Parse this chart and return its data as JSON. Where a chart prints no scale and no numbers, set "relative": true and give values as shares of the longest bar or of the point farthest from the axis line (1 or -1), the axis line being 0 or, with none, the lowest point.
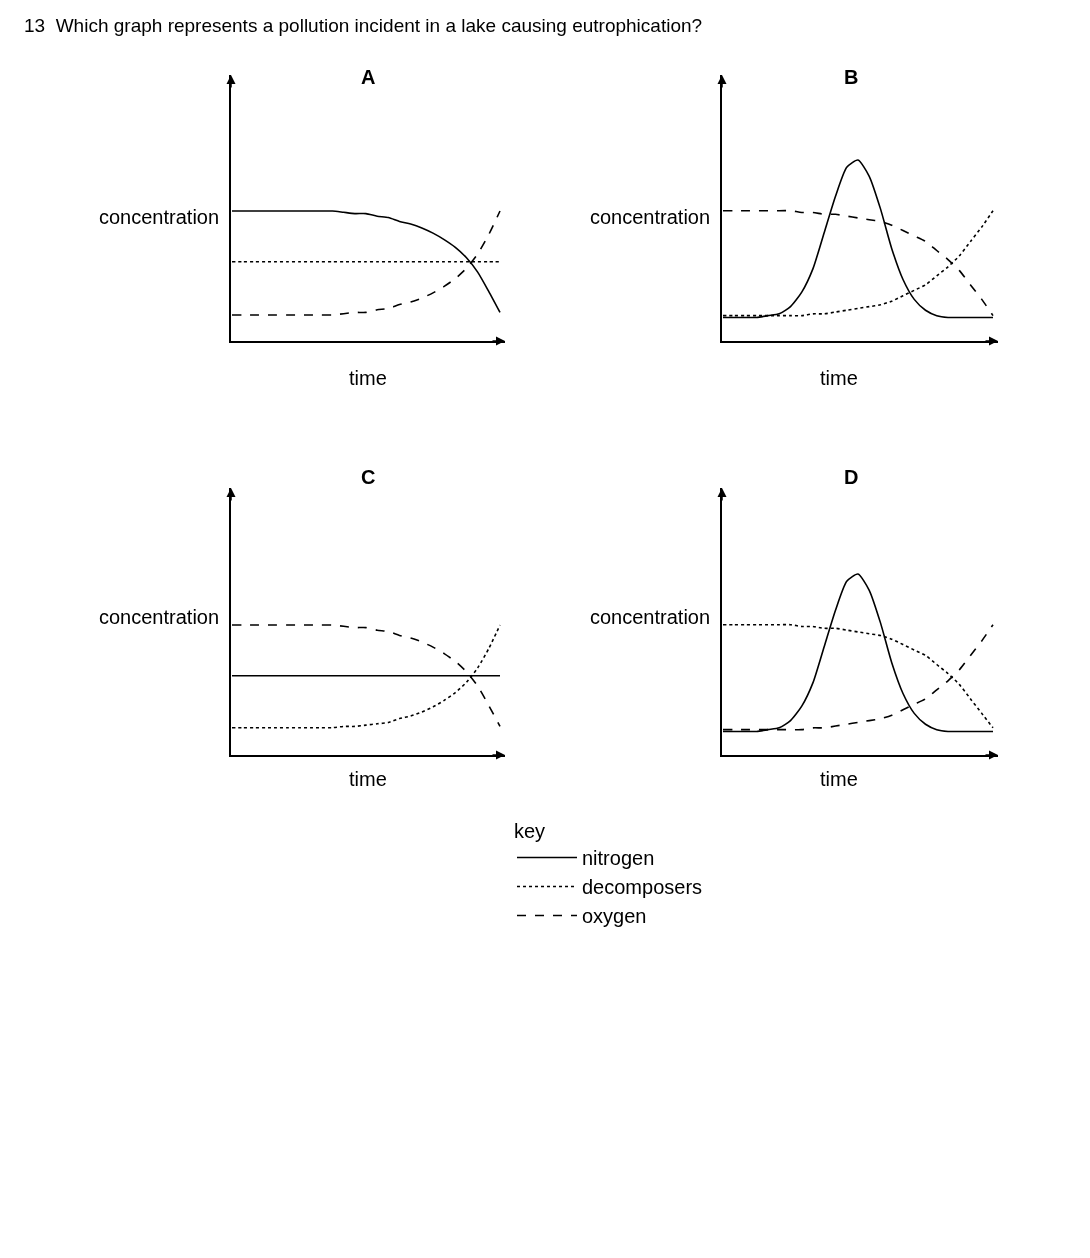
{
  "chart_data": [
    {
      "type": "line",
      "title": "A",
      "ylabel": "concentration",
      "xlabel": "time",
      "relative": true,
      "legend": "bottom right",
      "legend_title": "key",
      "annotations": [
        "13  Which graph represents a pollution incident in a lake causing eutrophication?"
      ],
      "categories": [
        null,
        null,
        null,
        null,
        null,
        null,
        null,
        null,
        null,
        null,
        null,
        null,
        null,
        null,
        null,
        null,
        null,
        null,
        null,
        null,
        null,
        null,
        null,
        null,
        null
      ],
      "series": [
        {
          "name": "nitrogen",
          "color": "#000000",
          "line_style": "solid",
          "values": [
            1,
            1,
            1,
            1,
            1,
            1,
            1,
            1,
            1,
            1,
            0.99,
            0.98,
            0.98,
            0.96,
            0.95,
            0.92,
            0.9,
            0.87,
            0.83,
            0.78,
            0.72,
            0.64,
            0.53,
            0.38,
            0.22
          ]
        },
        {
          "name": "decomposers",
          "color": "#000000",
          "line_style": "dotted",
          "values": [
            0.61,
            0.61,
            0.61,
            0.61,
            0.61,
            0.61,
            0.61,
            0.61,
            0.61,
            0.61,
            0.61,
            0.61,
            0.61,
            0.61,
            0.61,
            0.61,
            0.61,
            0.61,
            0.61,
            0.61,
            0.61,
            0.61,
            0.61,
            0.61,
            0.61
          ]
        },
        {
          "name": "oxygen",
          "color": "#000000",
          "line_style": "dashed",
          "values": [
            0.2,
            0.2,
            0.2,
            0.2,
            0.2,
            0.2,
            0.2,
            0.2,
            0.2,
            0.2,
            0.21,
            0.22,
            0.22,
            0.24,
            0.25,
            0.28,
            0.3,
            0.33,
            0.37,
            0.42,
            0.48,
            0.56,
            0.67,
            0.82,
            1.0
          ]
        }
      ]
    },
    {
      "type": "line",
      "title": "B",
      "ylabel": "concentration",
      "xlabel": "time",
      "relative": true,
      "categories": [
        null,
        null,
        null,
        null,
        null,
        null,
        null,
        null,
        null,
        null,
        null,
        null,
        null,
        null,
        null,
        null,
        null,
        null,
        null,
        null,
        null,
        null,
        null,
        null,
        null
      ],
      "series": [
        {
          "color": "#000000",
          "line_style": "solid",
          "values": [
            0.13,
            0.13,
            0.13,
            0.13,
            0.14,
            0.15,
            0.19,
            0.27,
            0.4,
            0.6,
            0.8,
            0.96,
            1.0,
            0.91,
            0.73,
            0.51,
            0.34,
            0.23,
            0.17,
            0.14,
            0.13,
            0.13,
            0.13,
            0.13,
            0.13
          ]
        },
        {
          "color": "#000000",
          "line_style": "dotted",
          "values": [
            0.14,
            0.14,
            0.14,
            0.14,
            0.14,
            0.14,
            0.14,
            0.14,
            0.15,
            0.15,
            0.16,
            0.17,
            0.18,
            0.19,
            0.2,
            0.22,
            0.25,
            0.28,
            0.31,
            0.36,
            0.41,
            0.47,
            0.55,
            0.63,
            0.72
          ]
        },
        {
          "color": "#000000",
          "line_style": "dashed",
          "values": [
            0.72,
            0.72,
            0.72,
            0.72,
            0.72,
            0.72,
            0.72,
            0.71,
            0.71,
            0.7,
            0.7,
            0.69,
            0.68,
            0.67,
            0.66,
            0.64,
            0.61,
            0.58,
            0.55,
            0.5,
            0.45,
            0.39,
            0.31,
            0.23,
            0.14
          ]
        }
      ]
    },
    {
      "type": "line",
      "title": "C",
      "ylabel": "concentration",
      "xlabel": "time",
      "relative": true,
      "categories": [
        null,
        null,
        null,
        null,
        null,
        null,
        null,
        null,
        null,
        null,
        null,
        null,
        null,
        null,
        null,
        null,
        null,
        null,
        null,
        null,
        null,
        null,
        null,
        null,
        null
      ],
      "series": [
        {
          "color": "#000000",
          "line_style": "solid",
          "values": [
            0.61,
            0.61,
            0.61,
            0.61,
            0.61,
            0.61,
            0.61,
            0.61,
            0.61,
            0.61,
            0.61,
            0.61,
            0.61,
            0.61,
            0.61,
            0.61,
            0.61,
            0.61,
            0.61,
            0.61,
            0.61,
            0.61,
            0.61,
            0.61,
            0.61
          ]
        },
        {
          "color": "#000000",
          "line_style": "dotted",
          "values": [
            0.21,
            0.21,
            0.21,
            0.21,
            0.21,
            0.21,
            0.21,
            0.21,
            0.21,
            0.21,
            0.22,
            0.22,
            0.23,
            0.24,
            0.25,
            0.28,
            0.3,
            0.33,
            0.37,
            0.42,
            0.48,
            0.56,
            0.67,
            0.82,
            1.0
          ]
        },
        {
          "color": "#000000",
          "line_style": "dashed",
          "values": [
            1,
            1,
            1,
            1,
            1,
            1,
            1,
            1,
            1,
            1,
            0.99,
            0.98,
            0.98,
            0.96,
            0.95,
            0.92,
            0.9,
            0.87,
            0.83,
            0.78,
            0.72,
            0.64,
            0.53,
            0.38,
            0.22
          ]
        }
      ]
    },
    {
      "type": "line",
      "title": "D",
      "ylabel": "concentration",
      "xlabel": "time",
      "relative": true,
      "categories": [
        null,
        null,
        null,
        null,
        null,
        null,
        null,
        null,
        null,
        null,
        null,
        null,
        null,
        null,
        null,
        null,
        null,
        null,
        null,
        null,
        null,
        null,
        null,
        null,
        null
      ],
      "series": [
        {
          "color": "#000000",
          "line_style": "solid",
          "values": [
            0.13,
            0.13,
            0.13,
            0.13,
            0.14,
            0.15,
            0.19,
            0.27,
            0.4,
            0.6,
            0.8,
            0.96,
            1.0,
            0.91,
            0.73,
            0.51,
            0.34,
            0.23,
            0.17,
            0.14,
            0.13,
            0.13,
            0.13,
            0.13,
            0.13
          ]
        },
        {
          "color": "#000000",
          "line_style": "dotted",
          "values": [
            0.72,
            0.72,
            0.72,
            0.72,
            0.72,
            0.72,
            0.72,
            0.71,
            0.71,
            0.7,
            0.7,
            0.69,
            0.68,
            0.67,
            0.66,
            0.64,
            0.61,
            0.58,
            0.55,
            0.5,
            0.45,
            0.39,
            0.31,
            0.23,
            0.15
          ]
        },
        {
          "color": "#000000",
          "line_style": "dashed",
          "values": [
            0.14,
            0.14,
            0.14,
            0.14,
            0.14,
            0.14,
            0.14,
            0.14,
            0.15,
            0.15,
            0.16,
            0.17,
            0.18,
            0.19,
            0.2,
            0.22,
            0.25,
            0.28,
            0.31,
            0.36,
            0.41,
            0.47,
            0.55,
            0.63,
            0.72
          ]
        }
      ]
    }
  ]
}
